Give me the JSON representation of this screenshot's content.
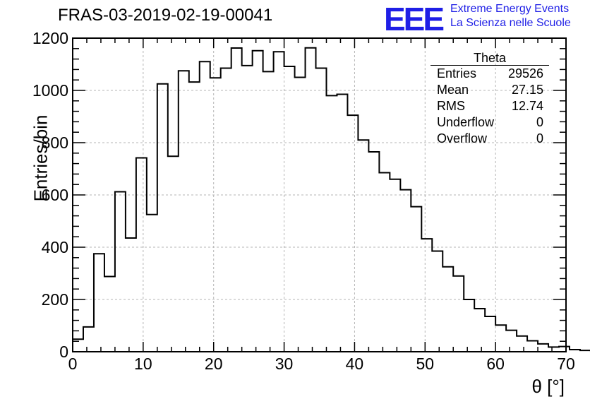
{
  "page": {
    "title": "FRAS-03-2019-02-19-00041",
    "logo": {
      "letters": "EEE",
      "line1": "Extreme Energy Events",
      "line2": "La Scienza nelle Scuole",
      "color": "#1f1fe6"
    }
  },
  "stats": {
    "name": "Theta",
    "rows": [
      {
        "label": "Entries",
        "value": "29526"
      },
      {
        "label": "Mean",
        "value": "27.15"
      },
      {
        "label": "RMS",
        "value": "12.74"
      },
      {
        "label": "Underflow",
        "value": "0"
      },
      {
        "label": "Overflow",
        "value": "0"
      }
    ]
  },
  "chart_data": {
    "type": "bar",
    "style": "step-histogram",
    "title": "FRAS-03-2019-02-19-00041",
    "xlabel": "θ [°]",
    "ylabel": "Entries/bin",
    "xlim": [
      0,
      70
    ],
    "ylim": [
      0,
      1200
    ],
    "xticks": [
      0,
      10,
      20,
      30,
      40,
      50,
      60,
      70
    ],
    "yticks": [
      0,
      200,
      400,
      600,
      800,
      1000,
      1200
    ],
    "grid": true,
    "bin_width": 1.5,
    "bin_edges_start": 0,
    "values": [
      48,
      95,
      375,
      288,
      612,
      435,
      742,
      525,
      1025,
      748,
      1075,
      1032,
      1110,
      1048,
      1085,
      1162,
      1095,
      1152,
      1072,
      1148,
      1092,
      1050,
      1163,
      1085,
      980,
      985,
      905,
      810,
      765,
      685,
      660,
      620,
      555,
      432,
      385,
      325,
      290,
      200,
      165,
      135,
      102,
      82,
      60,
      42,
      30,
      18,
      20,
      8,
      5,
      0
    ]
  }
}
